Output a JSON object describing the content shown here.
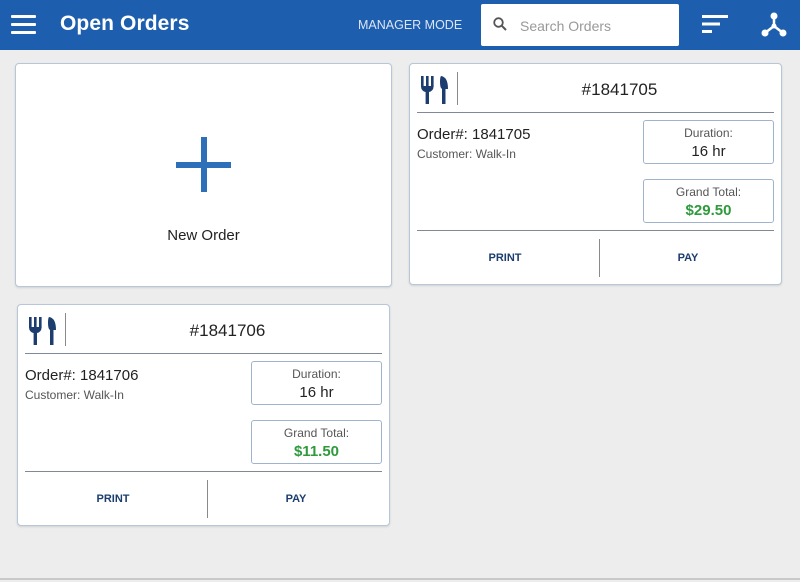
{
  "appbar": {
    "title": "Open Orders",
    "manager_mode_label": "MANAGER MODE",
    "search_placeholder": "Search Orders",
    "background": "#1d5eae",
    "icons": [
      "menu-icon",
      "search-icon",
      "sort-icon",
      "network-icon"
    ]
  },
  "new_order": {
    "label": "New Order",
    "icon": "plus-icon",
    "accent": "#2d6fb8"
  },
  "orders": [
    {
      "header": "#1841705",
      "order_line": "Order#: 1841705",
      "customer": "Customer: Walk-In",
      "duration_label": "Duration:",
      "duration": "16 hr",
      "total_label": "Grand Total:",
      "total": "$29.50",
      "print_label": "PRINT",
      "pay_label": "PAY"
    },
    {
      "header": "#1841706",
      "order_line": "Order#: 1841706",
      "customer": "Customer: Walk-In",
      "duration_label": "Duration:",
      "duration": "16 hr",
      "total_label": "Grand Total:",
      "total": "$11.50",
      "print_label": "PRINT",
      "pay_label": "PAY"
    }
  ],
  "colors": {
    "total_green": "#2e9a3c",
    "action_text": "#1c3d6e"
  }
}
